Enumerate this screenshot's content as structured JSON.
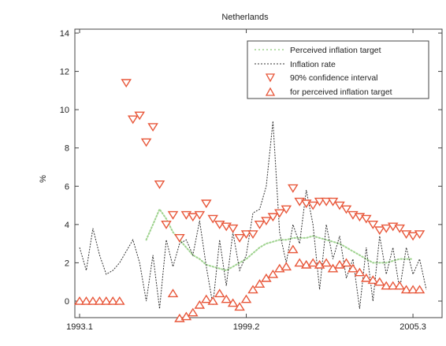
{
  "chart_data": {
    "type": "line",
    "title": "Netherlands",
    "ylabel": "%",
    "xlabel": "",
    "ylim": [
      -1,
      14
    ],
    "yticks": [
      0,
      2,
      4,
      6,
      8,
      10,
      12,
      14
    ],
    "xticks": [
      {
        "label": "1993.1",
        "t": 0
      },
      {
        "label": "1999.2",
        "t": 25
      },
      {
        "label": "2005.3",
        "t": 50
      }
    ],
    "xlim": [
      0,
      52
    ],
    "grid": false,
    "legend_position": "top-right",
    "legend": [
      "Perceived inflation target",
      "Inflation rate",
      "90% confidence interval",
      "for perceived inflation target"
    ],
    "colors": {
      "target": "#9fd38f",
      "inflation": "#333333",
      "upper": "#e8573a",
      "lower": "#e8573a",
      "axes": "#444444"
    },
    "series": [
      {
        "name": "Inflation rate",
        "x": [
          0,
          1,
          2,
          3,
          4,
          5,
          6,
          7,
          8,
          9,
          10,
          11,
          12,
          13,
          14,
          15,
          16,
          17,
          18,
          19,
          20,
          21,
          22,
          23,
          24,
          25,
          26,
          27,
          28,
          29,
          30,
          31,
          32,
          33,
          34,
          35,
          36,
          37,
          38,
          39,
          40,
          41,
          42,
          43,
          44,
          45,
          46,
          47,
          48,
          49,
          50,
          51,
          52
        ],
        "values": [
          2.8,
          1.6,
          3.8,
          2.4,
          1.4,
          1.6,
          2,
          2.6,
          3.2,
          2,
          0,
          2.4,
          -0.4,
          3.2,
          1.8,
          3,
          3.2,
          2.4,
          4.2,
          1.8,
          -0.2,
          3.2,
          0.8,
          3.6,
          1.6,
          2.4,
          4.6,
          4.8,
          6,
          9.4,
          3.6,
          2,
          4,
          3,
          5.8,
          4,
          0.6,
          4,
          2.2,
          3.4,
          1.2,
          2.2,
          -0.4,
          2.8,
          0,
          3.4,
          1.4,
          2.8,
          0.6,
          2.8,
          1.4,
          2.2,
          0.6
        ]
      },
      {
        "name": "Perceived inflation target",
        "x": [
          10,
          11,
          12,
          13,
          14,
          15,
          16,
          17,
          18,
          19,
          20,
          21,
          22,
          23,
          24,
          25,
          26,
          27,
          28,
          29,
          30,
          31,
          32,
          33,
          34,
          35,
          36,
          37,
          38,
          39,
          40,
          41,
          42,
          43,
          44,
          45,
          46,
          47,
          48,
          49,
          50
        ],
        "values": [
          3.2,
          4,
          4.8,
          4.3,
          3.6,
          3.2,
          2.8,
          2.4,
          2.2,
          1.9,
          1.8,
          1.7,
          1.6,
          1.8,
          2,
          2.2,
          2.5,
          2.8,
          3,
          3.1,
          3.2,
          3.2,
          3.3,
          3.3,
          3.3,
          3.4,
          3.3,
          3.2,
          3.1,
          3,
          2.8,
          2.6,
          2.4,
          2.2,
          2,
          2,
          2,
          2.1,
          2.2,
          2.2,
          2.2
        ]
      },
      {
        "name": "90% confidence interval",
        "x": [
          7,
          8,
          9,
          10,
          11,
          12,
          13,
          14,
          15,
          16,
          17,
          18,
          19,
          20,
          21,
          22,
          23,
          24,
          25,
          26,
          27,
          28,
          29,
          30,
          31,
          32,
          33,
          34,
          35,
          36,
          37,
          38,
          39,
          40,
          41,
          42,
          43,
          44,
          45,
          46,
          47,
          48,
          49,
          50,
          51
        ],
        "values": [
          11.4,
          9.5,
          9.7,
          8.3,
          9.1,
          6.1,
          4.0,
          4.5,
          3.3,
          4.5,
          4.4,
          4.5,
          5.1,
          4.3,
          4.0,
          3.9,
          3.8,
          3.3,
          3.5,
          3.5,
          4.0,
          4.2,
          4.4,
          4.6,
          4.8,
          5.9,
          5.2,
          5.1,
          5.0,
          5.2,
          5.2,
          5.2,
          5.0,
          4.8,
          4.5,
          4.4,
          4.3,
          4.0,
          3.7,
          3.8,
          3.9,
          3.8,
          3.5,
          3.4,
          3.5
        ]
      },
      {
        "name": "for perceived inflation target",
        "x": [
          0,
          1,
          2,
          3,
          4,
          5,
          6,
          14,
          15,
          16,
          17,
          18,
          19,
          20,
          21,
          22,
          23,
          24,
          25,
          26,
          27,
          28,
          29,
          30,
          31,
          32,
          33,
          34,
          35,
          36,
          37,
          38,
          39,
          40,
          41,
          42,
          43,
          44,
          45,
          46,
          47,
          48,
          49,
          50,
          51
        ],
        "values": [
          0,
          0,
          0,
          0,
          0,
          0,
          0,
          0.4,
          -0.9,
          -0.8,
          -0.6,
          -0.2,
          0.1,
          0,
          0.4,
          0.1,
          -0.1,
          -0.3,
          0.1,
          0.6,
          0.9,
          1.2,
          1.4,
          1.7,
          1.8,
          2.7,
          2.0,
          1.9,
          2.0,
          1.9,
          2.0,
          1.7,
          1.9,
          2.0,
          1.7,
          1.5,
          1.2,
          1.1,
          1.0,
          0.8,
          0.8,
          0.8,
          0.6,
          0.6,
          0.6
        ]
      }
    ]
  }
}
